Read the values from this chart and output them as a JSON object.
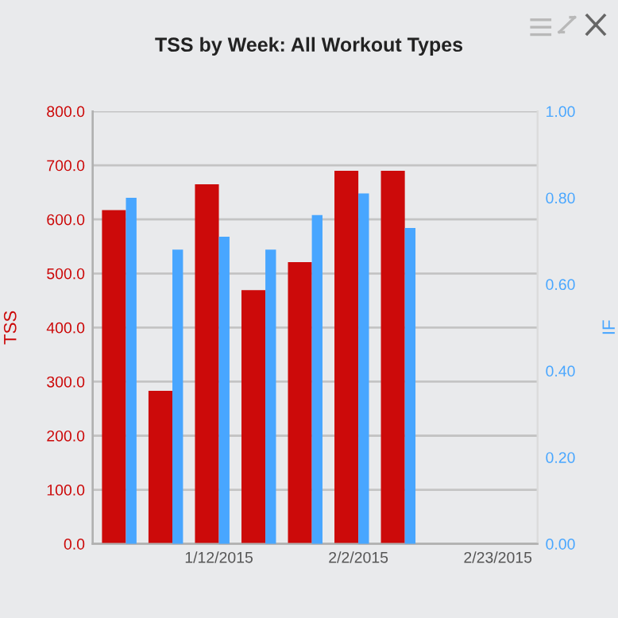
{
  "chart_data": {
    "type": "bar",
    "title": "TSS by Week: All Workout Types",
    "ylabel": "TSS",
    "y2label": "IF",
    "x": [
      "2014-12-29",
      "2015-01-05",
      "2015-01-12",
      "2015-01-19",
      "2015-01-26",
      "2015-02-02",
      "2015-02-09"
    ],
    "series": [
      {
        "color": "#cc0a0a",
        "values": [
          617,
          283,
          665,
          469,
          521,
          690,
          690
        ]
      },
      {
        "color": "#48a6ff",
        "axis": "y2",
        "values": [
          0.8,
          0.68,
          0.71,
          0.68,
          0.76,
          0.81,
          0.73
        ]
      }
    ],
    "xlim": [
      "2014-12-24",
      "2015-03-01"
    ],
    "xticks": [
      {
        "value": "2015-01-12",
        "label": "1/12/2015"
      },
      {
        "value": "2015-02-02",
        "label": "2/2/2015"
      },
      {
        "value": "2015-02-23",
        "label": "2/23/2015"
      }
    ],
    "ylim": [
      0,
      800
    ],
    "yticks": [
      {
        "value": 0,
        "label": "0.0"
      },
      {
        "value": 100,
        "label": "100.0"
      },
      {
        "value": 200,
        "label": "200.0"
      },
      {
        "value": 300,
        "label": "300.0"
      },
      {
        "value": 400,
        "label": "400.0"
      },
      {
        "value": 500,
        "label": "500.0"
      },
      {
        "value": 600,
        "label": "600.0"
      },
      {
        "value": 700,
        "label": "700.0"
      },
      {
        "value": 800,
        "label": "800.0"
      }
    ],
    "y2lim": [
      0,
      1
    ],
    "y2ticks": [
      {
        "value": 0,
        "label": "0.00"
      },
      {
        "value": 0.2,
        "label": "0.20"
      },
      {
        "value": 0.4,
        "label": "0.40"
      },
      {
        "value": 0.6,
        "label": "0.60"
      },
      {
        "value": 0.8,
        "label": "0.80"
      },
      {
        "value": 1,
        "label": "1.00"
      }
    ],
    "grid": "y",
    "legend": false
  }
}
